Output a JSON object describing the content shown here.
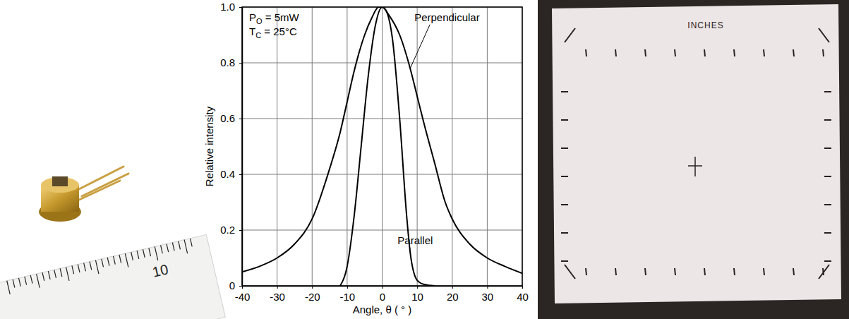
{
  "chart_data": {
    "type": "line",
    "x_label": "Angle, θ ( ° )",
    "y_label": "Relative intensity",
    "annotations": [
      {
        "text": "P",
        "subscript": "O",
        "suffix": " = 5mW"
      },
      {
        "text": "T",
        "subscript": "C",
        "suffix": " = 25°C"
      }
    ],
    "xlim": [
      -40,
      40
    ],
    "xticks": [
      -40,
      -30,
      -20,
      -10,
      0,
      10,
      20,
      30,
      40
    ],
    "ylim": [
      0,
      1
    ],
    "yticks": [
      0,
      0.2,
      0.4,
      0.6,
      0.8,
      {
        "value": 1,
        "label": "1.0"
      }
    ],
    "grid": true,
    "series": [
      {
        "name": "Perpendicular",
        "color": "#000000",
        "line_style": "solid",
        "x": [
          -40,
          -35,
          -30,
          -25,
          -20,
          -15,
          -12,
          -10,
          -8,
          -5,
          -3,
          -1,
          0,
          2,
          5,
          8,
          10,
          12,
          15,
          18,
          20,
          25,
          30,
          35,
          40
        ],
        "values": [
          0.05,
          0.07,
          0.1,
          0.15,
          0.24,
          0.42,
          0.55,
          0.66,
          0.77,
          0.9,
          0.96,
          1.0,
          1.0,
          0.97,
          0.9,
          0.78,
          0.68,
          0.58,
          0.44,
          0.3,
          0.24,
          0.15,
          0.1,
          0.07,
          0.045
        ]
      },
      {
        "name": "Parallel",
        "color": "#000000",
        "line_style": "solid",
        "x": [
          -12,
          -10,
          -8,
          -6,
          -4,
          -2,
          0,
          1,
          3,
          5,
          7,
          8,
          10,
          12,
          15
        ],
        "values": [
          0,
          0.07,
          0.25,
          0.5,
          0.75,
          0.93,
          1.0,
          0.99,
          0.88,
          0.6,
          0.25,
          0.12,
          0.02,
          0.005,
          0
        ]
      }
    ]
  },
  "left_photo": {
    "ruler_label": "10"
  },
  "right_photo": {
    "paper_label": "INCHES"
  }
}
